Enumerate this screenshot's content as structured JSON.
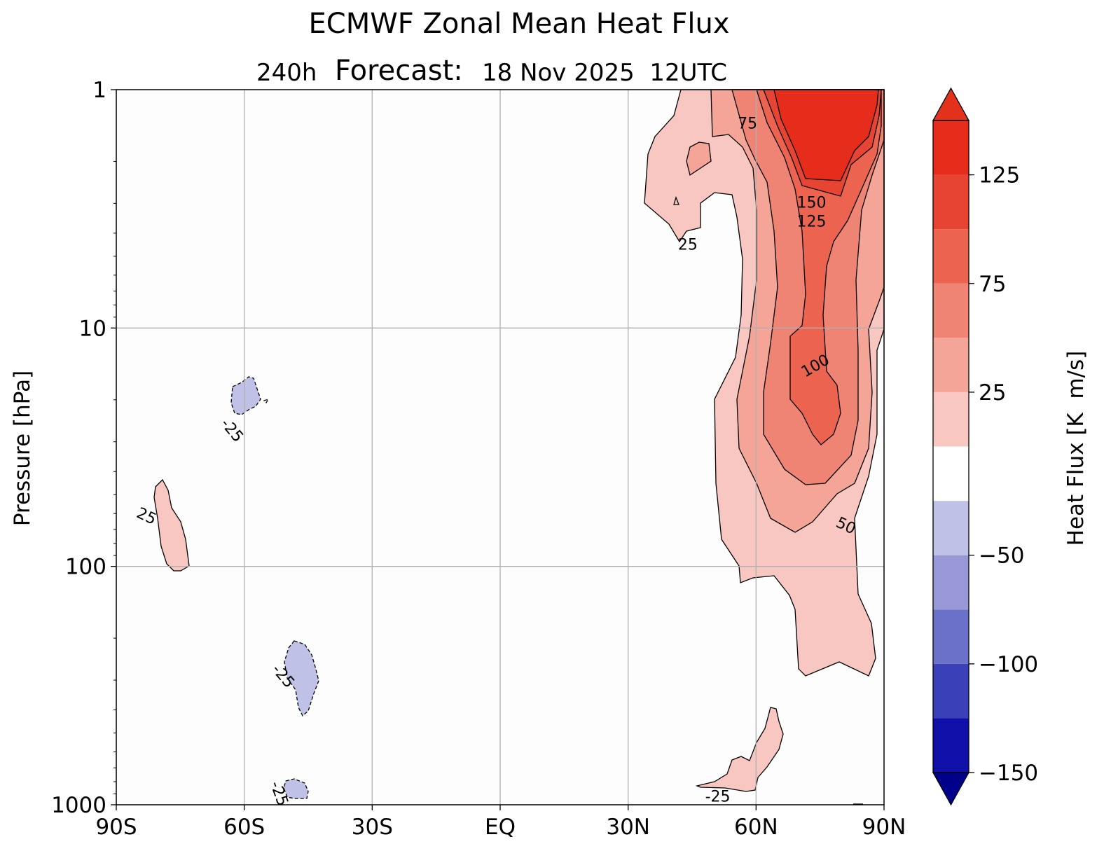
{
  "chart_data": {
    "type": "heatmap",
    "title": "ECMWF Zonal Mean Heat Flux",
    "subtitle": {
      "lead": "240h",
      "label": "Forecast:",
      "date": "18 Nov 2025  12UTC"
    },
    "xlabel": "",
    "ylabel": "Pressure [hPa]",
    "x_ticks": [
      "90S",
      "60S",
      "30S",
      "EQ",
      "30N",
      "60N",
      "90N"
    ],
    "x_tick_values": [
      -90,
      -60,
      -30,
      0,
      30,
      60,
      90
    ],
    "y_ticks": [
      "1",
      "10",
      "100",
      "1000"
    ],
    "y_tick_values": [
      1,
      10,
      100,
      1000
    ],
    "y_scale": "log",
    "y_inverted": true,
    "xlim": [
      -90,
      90
    ],
    "ylim": [
      1000,
      1
    ],
    "grid": true,
    "colorbar": {
      "label": "Heat Flux [K  m/s]",
      "levels": [
        -150,
        -125,
        -100,
        -75,
        -50,
        -25,
        0,
        25,
        50,
        75,
        100,
        125,
        150
      ],
      "tick_labels": [
        "125",
        "75",
        "25",
        "−50",
        "−100",
        "−150"
      ],
      "tick_values": [
        125,
        75,
        25,
        -50,
        -100,
        -150
      ],
      "colors": [
        "#1010a8",
        "#3a40b8",
        "#6b70c8",
        "#9898d6",
        "#bfc1e6",
        "#ffffff",
        "#f8c7c1",
        "#f4a598",
        "#f08474",
        "#ec644f",
        "#e84434",
        "#e62c1a"
      ],
      "extend_low_color": "#00008b",
      "extend_high_color": "#e3321c"
    },
    "contour_labels": [
      {
        "text": "75",
        "lon": 58,
        "p": 1.4,
        "rot": 0
      },
      {
        "text": "150",
        "lon": 73,
        "p": 3.0,
        "rot": 0
      },
      {
        "text": "125",
        "lon": 73,
        "p": 3.6,
        "rot": 0
      },
      {
        "text": "25",
        "lon": 44,
        "p": 4.5,
        "rot": 0
      },
      {
        "text": "100",
        "lon": 74,
        "p": 14.5,
        "rot": -30
      },
      {
        "text": "50",
        "lon": 81,
        "p": 68,
        "rot": 25
      },
      {
        "text": "25",
        "lon": -83,
        "p": 62,
        "rot": 25
      },
      {
        "text": "-25",
        "lon": -63,
        "p": 27,
        "rot": 50
      },
      {
        "text": "-25",
        "lon": -51,
        "p": 290,
        "rot": 50
      },
      {
        "text": "-25",
        "lon": -52,
        "p": 900,
        "rot": 70
      },
      {
        "text": "-25",
        "lon": 51,
        "p": 930,
        "rot": 0
      }
    ],
    "regions": [
      {
        "level": 25,
        "kind": "positive",
        "description": "NH high-latitude upper-stratosphere band"
      },
      {
        "level": 50,
        "kind": "positive"
      },
      {
        "level": 75,
        "kind": "positive"
      },
      {
        "level": 100,
        "kind": "positive"
      },
      {
        "level": 125,
        "kind": "positive"
      },
      {
        "level": 150,
        "kind": "positive"
      },
      {
        "level": 25,
        "kind": "positive",
        "description": "SH small patch near 80S 45-100hPa"
      },
      {
        "level": -25,
        "kind": "negative",
        "description": "SH patches near 60S 20hPa, 50S 250hPa, 50S 950hPa"
      },
      {
        "level": 25,
        "kind": "positive",
        "description": "NH near-surface patch 50N-65N"
      }
    ]
  }
}
